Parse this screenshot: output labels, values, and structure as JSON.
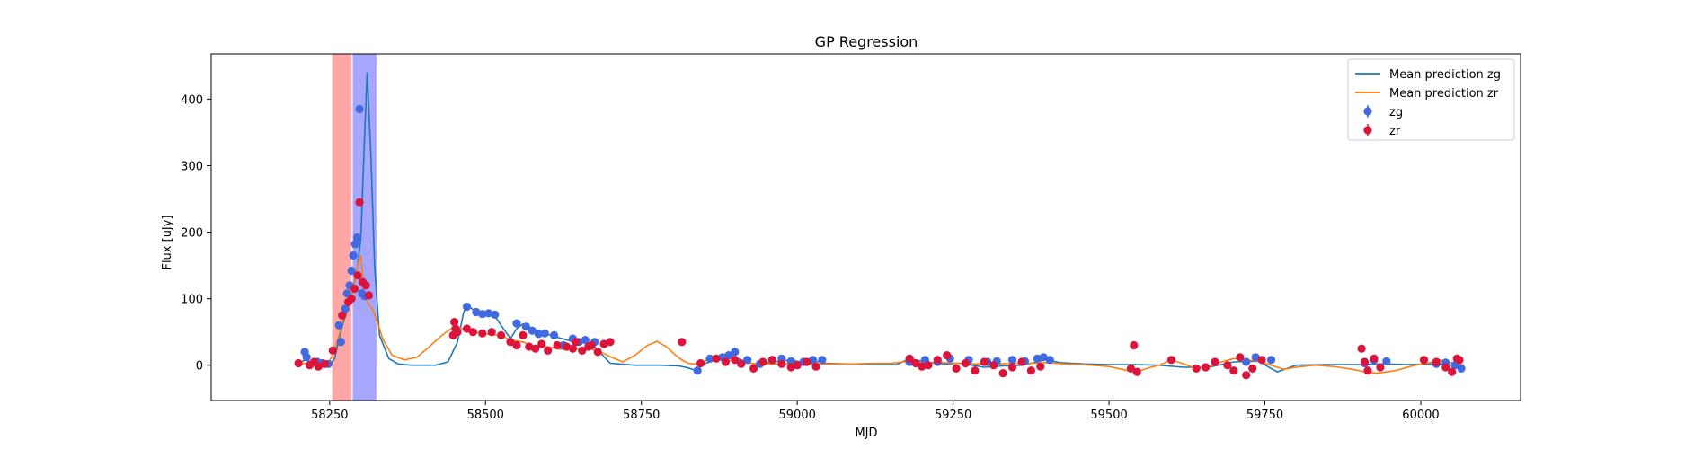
{
  "chart_data": {
    "type": "scatter",
    "title": "GP Regression",
    "xlabel": "MJD",
    "ylabel": "Flux [uJy]",
    "xlim": [
      58060,
      60160
    ],
    "ylim": [
      -53,
      468
    ],
    "xticks": [
      58250,
      58500,
      58750,
      59000,
      59250,
      59500,
      59750,
      60000
    ],
    "yticks": [
      0,
      100,
      200,
      300,
      400
    ],
    "grid": false,
    "legend_position": "upper-right",
    "legend": [
      {
        "label": "Mean prediction zg",
        "kind": "line",
        "color": "#1f77b4"
      },
      {
        "label": "Mean prediction zr",
        "kind": "line",
        "color": "#ff7f0e"
      },
      {
        "label": "zg",
        "kind": "marker",
        "color": "#4169e1"
      },
      {
        "label": "zr",
        "kind": "marker",
        "color": "#dc143c"
      }
    ],
    "shaded_regions": [
      {
        "x0": 58254,
        "x1": 58285,
        "color": "#ff0000",
        "opacity": 0.35
      },
      {
        "x0": 58287,
        "x1": 58325,
        "color": "#0000ff",
        "opacity": 0.35
      }
    ],
    "series": [
      {
        "name": "Mean prediction zg",
        "kind": "line",
        "color": "#1f77b4",
        "x": [
          58200,
          58210,
          58225,
          58240,
          58250,
          58258,
          58265,
          58272,
          58280,
          58288,
          58295,
          58300,
          58305,
          58310,
          58316,
          58322,
          58330,
          58345,
          58360,
          58380,
          58400,
          58420,
          58440,
          58455,
          58465,
          58472,
          58482,
          58495,
          58505,
          58515,
          58525,
          58540,
          58550,
          58560,
          58575,
          58595,
          58615,
          58635,
          58655,
          58675,
          58700,
          58740,
          58780,
          58810,
          58825,
          58838,
          58850,
          58870,
          58890,
          58910,
          58930,
          58950,
          58970,
          58990,
          59010,
          59030,
          59045,
          59080,
          59120,
          59160,
          59180,
          59200,
          59220,
          59240,
          59260,
          59280,
          59300,
          59330,
          59360,
          59380,
          59400,
          59420,
          59460,
          59500,
          59540,
          59580,
          59620,
          59660,
          59700,
          59740,
          59760,
          59770,
          59800,
          59850,
          59900,
          59940,
          59980,
          60020,
          60050,
          60070
        ],
        "y": [
          2,
          8,
          4,
          1,
          0,
          10,
          40,
          65,
          88,
          115,
          150,
          190,
          320,
          440,
          320,
          150,
          45,
          10,
          2,
          0,
          0,
          0,
          5,
          35,
          80,
          90,
          82,
          78,
          77,
          74,
          60,
          40,
          55,
          62,
          55,
          48,
          42,
          37,
          36,
          28,
          3,
          0,
          0,
          -1,
          -4,
          -8,
          2,
          8,
          15,
          8,
          2,
          4,
          6,
          8,
          4,
          6,
          3,
          2,
          1,
          1,
          10,
          6,
          3,
          2,
          3,
          0,
          -3,
          -1,
          0,
          4,
          9,
          4,
          2,
          1,
          1,
          0,
          -3,
          -3,
          5,
          6,
          -5,
          -10,
          0,
          1,
          1,
          2,
          1,
          2,
          0,
          -3
        ]
      },
      {
        "name": "Mean prediction zr",
        "kind": "line",
        "color": "#ff7f0e",
        "x": [
          58200,
          58215,
          58230,
          58245,
          58255,
          58265,
          58272,
          58280,
          58288,
          58295,
          58300,
          58305,
          58310,
          58318,
          58325,
          58335,
          58350,
          58370,
          58390,
          58410,
          58430,
          58445,
          58452,
          58460,
          58470,
          58480,
          58495,
          58510,
          58525,
          58540,
          58560,
          58580,
          58600,
          58620,
          58640,
          58660,
          58680,
          58700,
          58720,
          58740,
          58760,
          58775,
          58790,
          58805,
          58815,
          58825,
          58835,
          58845,
          58860,
          58880,
          58900,
          58920,
          58940,
          58960,
          58980,
          59000,
          59030,
          59060,
          59090,
          59120,
          59150,
          59180,
          59200,
          59230,
          59260,
          59290,
          59320,
          59350,
          59380,
          59400,
          59430,
          59460,
          59500,
          59520,
          59535,
          59545,
          59560,
          59580,
          59600,
          59620,
          59640,
          59660,
          59680,
          59700,
          59720,
          59740,
          59760,
          59780,
          59800,
          59830,
          59860,
          59890,
          59910,
          59930,
          59960,
          59990,
          60010,
          60030,
          60050,
          60070
        ],
        "y": [
          2,
          3,
          2,
          0,
          15,
          45,
          70,
          95,
          112,
          150,
          165,
          110,
          95,
          85,
          70,
          40,
          15,
          8,
          12,
          28,
          45,
          55,
          60,
          56,
          52,
          50,
          48,
          46,
          45,
          38,
          35,
          28,
          28,
          24,
          24,
          26,
          22,
          13,
          5,
          15,
          30,
          36,
          28,
          15,
          8,
          3,
          2,
          5,
          8,
          10,
          5,
          3,
          2,
          2,
          2,
          2,
          2,
          2,
          2,
          3,
          3,
          6,
          4,
          4,
          3,
          2,
          2,
          3,
          3,
          4,
          2,
          1,
          -2,
          -6,
          -9,
          -10,
          -5,
          0,
          8,
          2,
          -5,
          -2,
          5,
          10,
          8,
          6,
          0,
          -6,
          -3,
          0,
          -2,
          -6,
          -10,
          -12,
          -8,
          0,
          3,
          8,
          4,
          0
        ]
      },
      {
        "name": "zg",
        "kind": "scatter",
        "color": "#4169e1",
        "x": [
          58210,
          58213,
          58230,
          58238,
          58248,
          58265,
          58268,
          58275,
          58278,
          58282,
          58285,
          58288,
          58291,
          58294,
          58298,
          58302,
          58306,
          58470,
          58485,
          58495,
          58505,
          58515,
          58550,
          58565,
          58575,
          58585,
          58595,
          58610,
          58625,
          58640,
          58650,
          58660,
          58675,
          58840,
          58860,
          58880,
          58890,
          58900,
          58920,
          58940,
          58960,
          58975,
          58990,
          59010,
          59025,
          59040,
          59180,
          59205,
          59225,
          59245,
          59275,
          59305,
          59320,
          59345,
          59365,
          59385,
          59395,
          59405,
          59720,
          59735,
          59760,
          59910,
          59925,
          59945,
          60025,
          60040,
          60055,
          60065
        ],
        "y": [
          20,
          12,
          5,
          3,
          2,
          60,
          35,
          85,
          108,
          120,
          142,
          165,
          182,
          192,
          385,
          108,
          104,
          88,
          80,
          77,
          78,
          76,
          63,
          58,
          52,
          47,
          48,
          45,
          30,
          40,
          35,
          38,
          35,
          -8,
          10,
          12,
          15,
          20,
          8,
          2,
          8,
          10,
          6,
          5,
          8,
          8,
          5,
          8,
          5,
          10,
          8,
          5,
          6,
          8,
          6,
          10,
          12,
          8,
          5,
          12,
          8,
          3,
          8,
          6,
          2,
          4,
          0,
          -5
        ]
      },
      {
        "name": "zr",
        "kind": "scatter",
        "color": "#dc143c",
        "x": [
          58200,
          58218,
          58225,
          58232,
          58242,
          58255,
          58270,
          58280,
          58285,
          58290,
          58295,
          58298,
          58303,
          58308,
          58313,
          58448,
          58450,
          58452,
          58455,
          58470,
          58480,
          58495,
          58510,
          58525,
          58540,
          58550,
          58560,
          58570,
          58580,
          58590,
          58600,
          58615,
          58630,
          58640,
          58645,
          58655,
          58665,
          58670,
          58680,
          58690,
          58700,
          58815,
          58845,
          58870,
          58885,
          58900,
          58910,
          58930,
          58945,
          58960,
          58975,
          58990,
          59000,
          59015,
          59030,
          59180,
          59190,
          59200,
          59210,
          59225,
          59240,
          59255,
          59270,
          59285,
          59300,
          59315,
          59330,
          59345,
          59360,
          59375,
          59390,
          59535,
          59540,
          59545,
          59600,
          59640,
          59655,
          59670,
          59690,
          59700,
          59710,
          59720,
          59730,
          59745,
          59905,
          59910,
          59915,
          59925,
          59935,
          60005,
          60025,
          60040,
          60050,
          60058,
          60062
        ],
        "y": [
          3,
          0,
          5,
          -2,
          2,
          22,
          75,
          95,
          100,
          115,
          135,
          245,
          125,
          120,
          105,
          45,
          65,
          55,
          50,
          55,
          50,
          48,
          50,
          45,
          35,
          30,
          45,
          28,
          25,
          32,
          22,
          30,
          28,
          25,
          35,
          22,
          28,
          30,
          20,
          32,
          35,
          35,
          3,
          10,
          5,
          8,
          2,
          -5,
          5,
          8,
          2,
          -3,
          0,
          5,
          -2,
          10,
          3,
          -2,
          0,
          8,
          15,
          -5,
          3,
          -8,
          5,
          0,
          -12,
          -3,
          5,
          -8,
          -2,
          -5,
          30,
          -10,
          8,
          -5,
          -3,
          5,
          0,
          -8,
          12,
          -15,
          -5,
          8,
          25,
          5,
          -8,
          10,
          -3,
          8,
          5,
          -3,
          -10,
          10,
          8
        ]
      }
    ]
  }
}
